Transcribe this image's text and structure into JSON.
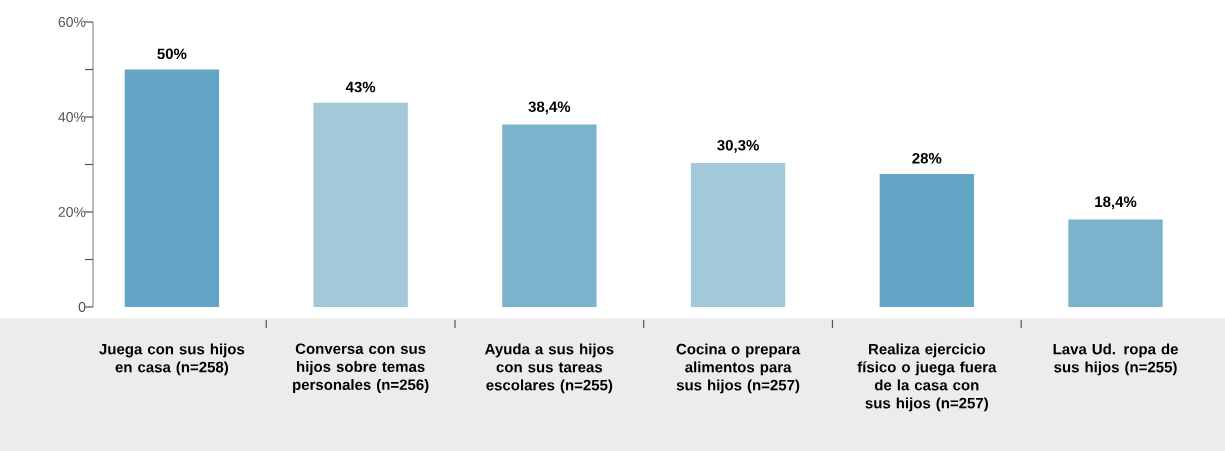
{
  "chart_data": {
    "type": "bar",
    "categories": [
      "Juega con sus hijos en casa (n=258)",
      "Conversa con sus hijos sobre temas personales (n=256)",
      "Ayuda a sus hijos con sus tareas escolares (n=255)",
      "Cocina o prepara alimentos para sus hijos (n=257)",
      "Realiza ejercicio físico o juega fuera de la casa con sus hijos (n=257)",
      "Lava Ud. ropa de sus hijos (n=255)"
    ],
    "values": [
      50,
      43,
      38.4,
      30.3,
      28,
      18.4
    ],
    "value_labels": [
      "50%",
      "43%",
      "38,4%",
      "30,3%",
      "28%",
      "18,4%"
    ],
    "colors": [
      "#62a5c5",
      "#a3c8da",
      "#7cb2cc",
      "#a3c8da",
      "#62a5c5",
      "#7cb2cc"
    ],
    "ylim": [
      0,
      60
    ],
    "yticks": [
      0,
      {
        "value": 10,
        "label": null
      },
      {
        "value": 20,
        "label": "20%"
      },
      {
        "value": 30,
        "label": null
      },
      {
        "value": 40,
        "label": "40%"
      },
      {
        "value": 50,
        "label": null
      },
      {
        "value": 60,
        "label": "60%"
      }
    ]
  }
}
